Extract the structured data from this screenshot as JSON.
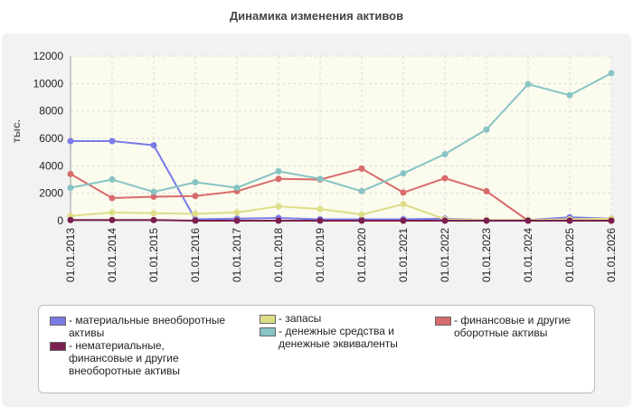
{
  "chart_data": {
    "type": "line",
    "title": "Динамика изменения активов",
    "ylabel": "тыс.",
    "xlabel": "",
    "ylim": [
      0,
      12000
    ],
    "yticks": [
      "0",
      "2000",
      "4000",
      "6000",
      "8000",
      "10000",
      "12000"
    ],
    "categories": [
      "01.01.2013",
      "01.01.2014",
      "01.01.2015",
      "01.01.2016",
      "01.01.2017",
      "01.01.2018",
      "01.01.2019",
      "01.01.2020",
      "01.01.2021",
      "01.01.2022",
      "01.01.2023",
      "01.01.2024",
      "01.01.2025",
      "01.01.2026"
    ],
    "grid": true,
    "legend_placement": "bottom",
    "series": [
      {
        "name": "материальные внеоборотные активы",
        "color": "#7b7be8",
        "values": [
          5800,
          5800,
          5500,
          100,
          150,
          200,
          100,
          100,
          100,
          150,
          50,
          50,
          250,
          150
        ]
      },
      {
        "name": "запасы",
        "color": "#dede88",
        "values": [
          350,
          600,
          550,
          500,
          600,
          1050,
          850,
          450,
          1200,
          100,
          50,
          50,
          100,
          150
        ]
      },
      {
        "name": "финансовые и другие оборотные активы",
        "color": "#d86b6b",
        "values": [
          3400,
          1650,
          1750,
          1800,
          2150,
          3050,
          3000,
          3800,
          2050,
          3100,
          2150,
          0,
          0,
          0
        ]
      },
      {
        "name": "нематериальные, финансовые и другие внеоборотные активы",
        "color": "#7a1f4e",
        "values": [
          50,
          50,
          50,
          0,
          0,
          0,
          0,
          0,
          0,
          0,
          0,
          0,
          0,
          0
        ]
      },
      {
        "name": "денежные средства и денежные эквиваленты",
        "color": "#88c4c4",
        "values": [
          2400,
          3000,
          2100,
          2800,
          2400,
          3600,
          3050,
          2150,
          3450,
          4850,
          6650,
          9950,
          9150,
          10750
        ]
      }
    ]
  },
  "legend": {
    "items": [
      {
        "label_lines": [
          "- материальные внеоборотные",
          "активы"
        ],
        "color": "#7b7be8"
      },
      {
        "label_lines": [
          "- нематериальные,",
          "финансовые и другие",
          "внеоборотные активы"
        ],
        "color": "#7a1f4e"
      },
      {
        "label_lines": [
          "- запасы"
        ],
        "color": "#dede88"
      },
      {
        "label_lines": [
          "- денежные средства и",
          "денежные эквиваленты"
        ],
        "color": "#88c4c4"
      },
      {
        "label_lines": [
          "- финансовые и другие",
          "оборотные активы"
        ],
        "color": "#d86b6b"
      }
    ]
  }
}
